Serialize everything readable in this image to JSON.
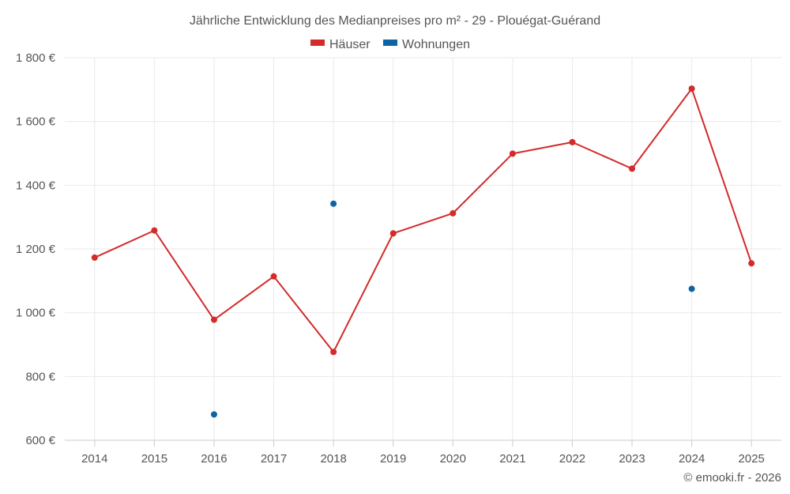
{
  "chart_data": {
    "type": "line",
    "title": "Jährliche Entwicklung des Medianpreises pro m² - 29 - Plouégat-Guérand",
    "categories": [
      "2014",
      "2015",
      "2016",
      "2017",
      "2018",
      "2019",
      "2020",
      "2021",
      "2022",
      "2023",
      "2024",
      "2025"
    ],
    "y_tick_labels": [
      "600 €",
      "800 €",
      "1 000 €",
      "1 200 €",
      "1 400 €",
      "1 600 €",
      "1 800 €"
    ],
    "y_ticks": [
      600,
      800,
      1000,
      1200,
      1400,
      1600,
      1800
    ],
    "ylim": [
      600,
      1800
    ],
    "grid": true,
    "legend_position": "top-center",
    "series": [
      {
        "name": "Häuser",
        "color": "#d42a2a",
        "values": [
          1173,
          1258,
          978,
          1114,
          877,
          1249,
          1312,
          1499,
          1535,
          1452,
          1703,
          1155
        ]
      },
      {
        "name": "Wohnungen",
        "color": "#0d63a3",
        "values": [
          null,
          null,
          681,
          null,
          1342,
          null,
          null,
          null,
          null,
          null,
          1075,
          null
        ]
      }
    ],
    "credit": "© emooki.fr - 2026"
  }
}
